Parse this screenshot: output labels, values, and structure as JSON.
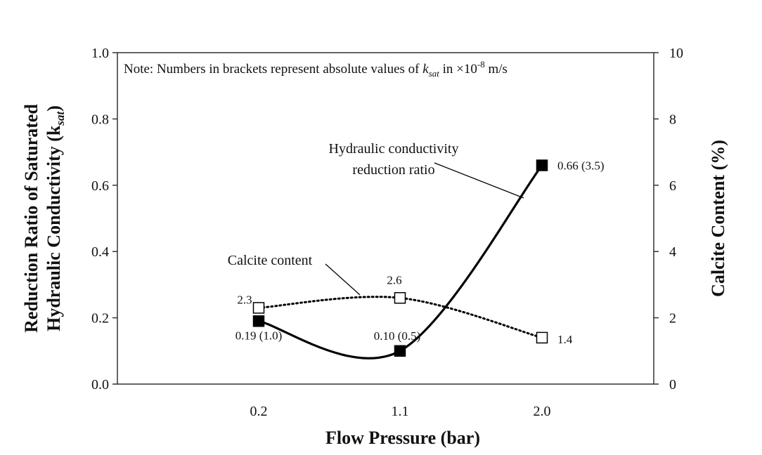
{
  "chart_data": {
    "type": "line",
    "categories": [
      "0.2",
      "1.1",
      "2.0"
    ],
    "xlabel": "Flow Pressure (bar)",
    "ylabel": {
      "line1": "Reduction Ratio of Saturated",
      "line2_prefix": "Hydraulic Conductivity (k",
      "line2_sub": "sat",
      "line2_suffix": ")"
    },
    "y2label": "Calcite Content (%)",
    "ylim": [
      0,
      1.0
    ],
    "y2lim": [
      0,
      10
    ],
    "yticks": [
      "0.0",
      "0.2",
      "0.4",
      "0.6",
      "0.8",
      "1.0"
    ],
    "y2ticks": [
      "0",
      "2",
      "4",
      "6",
      "8",
      "10"
    ],
    "note": {
      "prefix": "Note: Numbers in brackets represent absolute values of ",
      "k": "k",
      "sub": "sat",
      "mid": " in ×10",
      "sup": "-8",
      "suffix": " m/s"
    },
    "series": [
      {
        "name": "Hydraulic conductivity reduction ratio",
        "axis": "left",
        "style": "solid",
        "marker": "filled-square",
        "values": [
          0.19,
          0.1,
          0.66
        ],
        "labels": [
          "0.19 (1.0)",
          "0.10 (0.5)",
          "0.66 (3.5)"
        ]
      },
      {
        "name": "Calcite content",
        "axis": "right",
        "style": "dotted",
        "marker": "open-square",
        "values": [
          2.3,
          2.6,
          1.4
        ],
        "labels": [
          "2.3",
          "2.6",
          "1.4"
        ]
      }
    ],
    "annotations": {
      "hc_line1": "Hydraulic conductivity",
      "hc_line2": "reduction ratio",
      "calcite": "Calcite content"
    },
    "grid": false,
    "legend": "none"
  },
  "colors": {
    "line": "#000000",
    "background": "#ffffff"
  }
}
